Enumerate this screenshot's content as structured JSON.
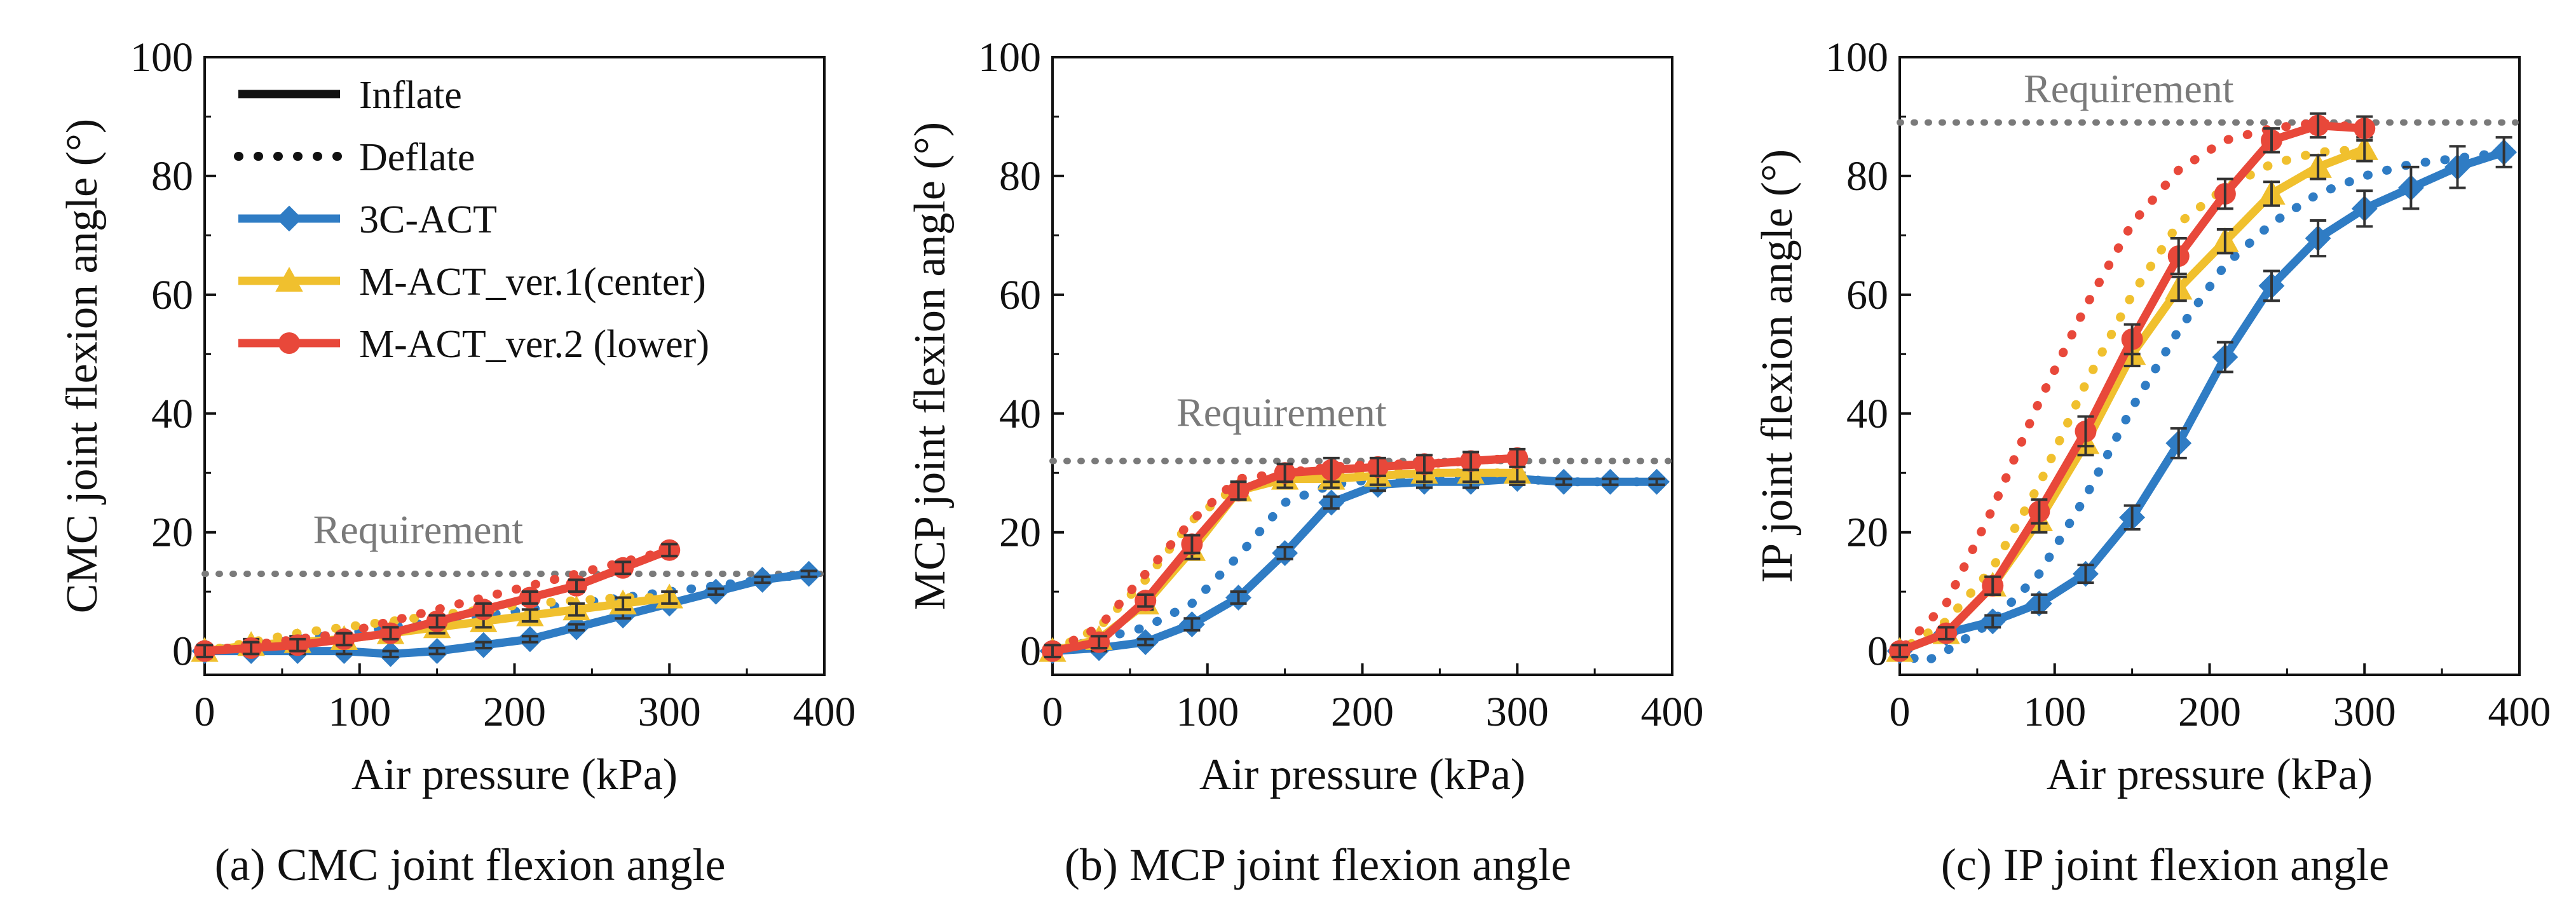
{
  "legend": {
    "items": [
      {
        "label": "Inflate",
        "style": "solid",
        "color": "#111111",
        "marker": "none"
      },
      {
        "label": "Deflate",
        "style": "dotted",
        "color": "#111111",
        "marker": "none"
      },
      {
        "label": "3C-ACT",
        "style": "solid",
        "color": "#2f7cc4",
        "marker": "diamond"
      },
      {
        "label": "M-ACT_ver.1(center)",
        "style": "solid",
        "color": "#f0c02e",
        "marker": "triangle"
      },
      {
        "label": "M-ACT_ver.2 (lower)",
        "style": "solid",
        "color": "#e8483a",
        "marker": "circle"
      }
    ]
  },
  "colors": {
    "s3c": "#2f7cc4",
    "v1": "#f0c02e",
    "v2": "#e8483a",
    "requirement": "#7a7a7a",
    "errorbar": "#333333"
  },
  "chart_data": [
    {
      "type": "line",
      "panel": "a",
      "caption": "(a) CMC joint flexion angle",
      "xlabel": "Air pressure (kPa)",
      "ylabel": "CMC joint flexion angle (°)",
      "xlim": [
        0,
        400
      ],
      "ylim": [
        -4,
        100
      ],
      "xticks": [
        0,
        100,
        200,
        300,
        400
      ],
      "yticks": [
        0,
        20,
        40,
        60,
        80,
        100
      ],
      "requirement": {
        "label": "Requirement",
        "value": 13,
        "x_start": 0,
        "x_end": 400
      },
      "series": [
        {
          "name": "3C-ACT",
          "key": "s3c",
          "marker": "diamond",
          "inflate": {
            "x": [
              0,
              30,
              60,
              90,
              120,
              150,
              180,
              210,
              240,
              270,
              300,
              330,
              360,
              390
            ],
            "y": [
              0,
              0,
              0,
              0,
              -0.5,
              0,
              1,
              2,
              4,
              6,
              8,
              10,
              12,
              13
            ],
            "err": [
              0.5,
              0.5,
              0.5,
              0.5,
              0.5,
              0.5,
              0.5,
              0.5,
              0.5,
              0.5,
              0.5,
              0.5,
              0.5,
              0.5
            ]
          },
          "deflate": {
            "x": [
              390,
              360,
              330,
              300,
              270,
              240,
              210,
              180,
              150,
              120,
              90,
              60,
              30,
              0
            ],
            "y": [
              13,
              12,
              11,
              10,
              9,
              8,
              7,
              6,
              5,
              4,
              3,
              2,
              1,
              0
            ]
          }
        },
        {
          "name": "M-ACT_ver.1(center)",
          "key": "v1",
          "marker": "triangle",
          "inflate": {
            "x": [
              0,
              30,
              60,
              90,
              120,
              150,
              180,
              210,
              240,
              270,
              300
            ],
            "y": [
              0,
              1,
              1.5,
              2,
              3,
              4,
              5,
              6,
              7,
              8,
              9
            ],
            "err": [
              1,
              1,
              1,
              1,
              1,
              1,
              1,
              1,
              1,
              1,
              1
            ]
          },
          "deflate": {
            "x": [
              300,
              270,
              240,
              210,
              180,
              150,
              120,
              90,
              60,
              30,
              0
            ],
            "y": [
              9,
              9,
              8.5,
              8,
              7,
              6,
              5,
              4,
              3,
              1.5,
              0
            ]
          }
        },
        {
          "name": "M-ACT_ver.2 (lower)",
          "key": "v2",
          "marker": "circle",
          "inflate": {
            "x": [
              0,
              30,
              60,
              90,
              120,
              150,
              180,
              210,
              240,
              270,
              300
            ],
            "y": [
              0,
              0.5,
              1,
              2,
              3,
              5,
              7,
              9,
              11,
              14,
              17
            ],
            "err": [
              1,
              1,
              1,
              1,
              1,
              1,
              1,
              1,
              1,
              1,
              1
            ]
          },
          "deflate": {
            "x": [
              300,
              270,
              240,
              210,
              180,
              150,
              120,
              90,
              60,
              30,
              0
            ],
            "y": [
              17,
              15,
              13,
              11,
              9,
              7,
              5,
              3,
              2,
              1,
              0
            ]
          }
        }
      ]
    },
    {
      "type": "line",
      "panel": "b",
      "caption": "(b) MCP joint flexion angle",
      "xlabel": "Air pressure (kPa)",
      "ylabel": "MCP joint flexion angle (°)",
      "xlim": [
        0,
        400
      ],
      "ylim": [
        -4,
        100
      ],
      "xticks": [
        0,
        100,
        200,
        300,
        400
      ],
      "yticks": [
        0,
        20,
        40,
        60,
        80,
        100
      ],
      "requirement": {
        "label": "Requirement",
        "value": 32,
        "x_start": 0,
        "x_end": 400
      },
      "series": [
        {
          "name": "3C-ACT",
          "key": "s3c",
          "marker": "diamond",
          "inflate": {
            "x": [
              0,
              30,
              60,
              90,
              120,
              150,
              180,
              210,
              240,
              270,
              300,
              330,
              360,
              390
            ],
            "y": [
              0,
              0.5,
              1.5,
              4.5,
              9,
              16.5,
              25,
              28,
              28.5,
              28.5,
              29,
              28.5,
              28.5,
              28.5
            ],
            "err": [
              0.5,
              0.5,
              0.5,
              1,
              1,
              1,
              1,
              1,
              1,
              1,
              1,
              0.5,
              0.5,
              0.5
            ]
          },
          "deflate": {
            "x": [
              390,
              360,
              330,
              300,
              270,
              240,
              210,
              180,
              150,
              120,
              90,
              60,
              30,
              0
            ],
            "y": [
              28.5,
              28.5,
              28.5,
              29,
              29,
              29,
              29,
              28,
              25,
              16,
              8,
              4,
              2,
              0
            ]
          }
        },
        {
          "name": "M-ACT_ver.1(center)",
          "key": "v1",
          "marker": "triangle",
          "inflate": {
            "x": [
              0,
              30,
              60,
              90,
              120,
              150,
              180,
              210,
              240,
              270,
              300
            ],
            "y": [
              0,
              2,
              8,
              17,
              27,
              29,
              29,
              29.5,
              30,
              30,
              30
            ],
            "err": [
              1,
              1,
              1,
              1.5,
              1.5,
              1.5,
              1.5,
              1.5,
              1.5,
              1.5,
              1.5
            ]
          },
          "deflate": {
            "x": [
              300,
              270,
              240,
              210,
              180,
              150,
              120,
              90,
              60,
              30,
              0
            ],
            "y": [
              30,
              30,
              30,
              30,
              30,
              29,
              28,
              22,
              12,
              4,
              0
            ]
          }
        },
        {
          "name": "M-ACT_ver.2 (lower)",
          "key": "v2",
          "marker": "circle",
          "inflate": {
            "x": [
              0,
              30,
              60,
              90,
              120,
              150,
              180,
              210,
              240,
              270,
              300
            ],
            "y": [
              0,
              1.5,
              8.5,
              18,
              27,
              30,
              30.5,
              31,
              31.5,
              32,
              32.5
            ],
            "err": [
              1,
              1,
              1,
              1.5,
              1.5,
              1.5,
              2,
              1.5,
              1.5,
              1.5,
              1.5
            ]
          },
          "deflate": {
            "x": [
              300,
              270,
              240,
              210,
              180,
              150,
              120,
              90,
              60,
              30,
              0
            ],
            "y": [
              32.5,
              32,
              31.5,
              31.5,
              31,
              30,
              29,
              22,
              13,
              4,
              0
            ]
          }
        }
      ]
    },
    {
      "type": "line",
      "panel": "c",
      "caption": "(c) IP joint flexion angle",
      "xlabel": "Air pressure (kPa)",
      "ylabel": "IP joint flexion angle (°)",
      "xlim": [
        0,
        400
      ],
      "ylim": [
        -4,
        100
      ],
      "xticks": [
        0,
        100,
        200,
        300,
        400
      ],
      "yticks": [
        0,
        20,
        40,
        60,
        80,
        100
      ],
      "requirement": {
        "label": "Requirement",
        "value": 89,
        "x_start": 0,
        "x_end": 400
      },
      "series": [
        {
          "name": "3C-ACT",
          "key": "s3c",
          "marker": "diamond",
          "inflate": {
            "x": [
              0,
              30,
              60,
              90,
              120,
              150,
              180,
              210,
              240,
              270,
              300,
              330,
              360,
              390
            ],
            "y": [
              0,
              3,
              5,
              8,
              13,
              22.5,
              35,
              49.5,
              61.5,
              69.5,
              74.5,
              78,
              81.5,
              84
            ],
            "err": [
              1,
              1,
              1,
              1.5,
              1.5,
              2,
              2.5,
              2.5,
              2.5,
              3,
              3,
              3.5,
              3.5,
              2.5
            ]
          },
          "deflate": {
            "x": [
              390,
              360,
              330,
              300,
              270,
              240,
              210,
              180,
              150,
              120,
              90,
              60,
              30,
              15,
              0
            ],
            "y": [
              84,
              83,
              82,
              80,
              77,
              72,
              65,
              54,
              41,
              26,
              13,
              5,
              0,
              -2,
              0
            ]
          }
        },
        {
          "name": "M-ACT_ver.1(center)",
          "key": "v1",
          "marker": "triangle",
          "inflate": {
            "x": [
              0,
              30,
              60,
              90,
              120,
              150,
              180,
              210,
              240,
              270,
              300
            ],
            "y": [
              0,
              3,
              11,
              22,
              35,
              50,
              61,
              69,
              77,
              81.5,
              84.5
            ],
            "err": [
              1,
              1,
              1.5,
              2,
              2,
              2,
              2,
              2,
              2,
              2,
              2
            ]
          },
          "deflate": {
            "x": [
              300,
              270,
              240,
              210,
              180,
              150,
              120,
              90,
              60,
              30,
              0
            ],
            "y": [
              84.5,
              84,
              82,
              78,
              72,
              60,
              45,
              28,
              14,
              5,
              0
            ]
          }
        },
        {
          "name": "M-ACT_ver.2 (lower)",
          "key": "v2",
          "marker": "circle",
          "inflate": {
            "x": [
              0,
              30,
              60,
              90,
              120,
              150,
              180,
              210,
              240,
              270,
              300
            ],
            "y": [
              0,
              3,
              11,
              23.5,
              37,
              52.5,
              66.5,
              77,
              86,
              88.5,
              88
            ],
            "err": [
              1,
              1,
              1.5,
              2,
              2.5,
              2.5,
              3,
              2.5,
              2,
              2,
              2
            ]
          },
          "deflate": {
            "x": [
              300,
              270,
              240,
              210,
              180,
              150,
              120,
              90,
              60,
              30,
              0
            ],
            "y": [
              88,
              89,
              88,
              86,
              81,
              72,
              58,
              42,
              24,
              8,
              0
            ]
          }
        }
      ]
    }
  ]
}
